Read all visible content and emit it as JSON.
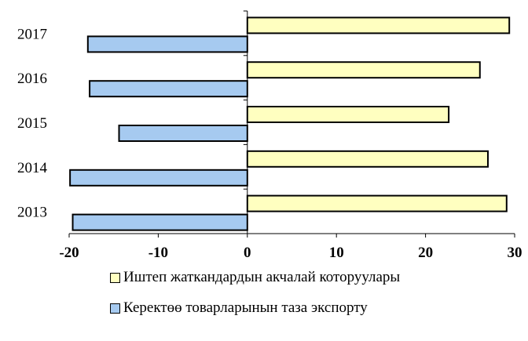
{
  "chart_data": {
    "type": "bar",
    "orientation": "horizontal",
    "categories": [
      "2013",
      "2014",
      "2015",
      "2016",
      "2017"
    ],
    "series": [
      {
        "name": "Иштеп жаткандардын акчалай которуулары",
        "values": [
          29.1,
          27.0,
          22.6,
          26.1,
          29.4
        ],
        "color": "#ffffc0"
      },
      {
        "name": "Керектөө товарларынын таза экспорту",
        "values": [
          -19.6,
          -19.9,
          -14.4,
          -17.7,
          -17.9
        ],
        "color": "#a6caf0"
      }
    ],
    "xlim": [
      -20,
      30
    ],
    "xticks": [
      "-20",
      "-10",
      "0",
      "10",
      "20",
      "30"
    ],
    "legend_position": "bottom",
    "grid": false
  }
}
